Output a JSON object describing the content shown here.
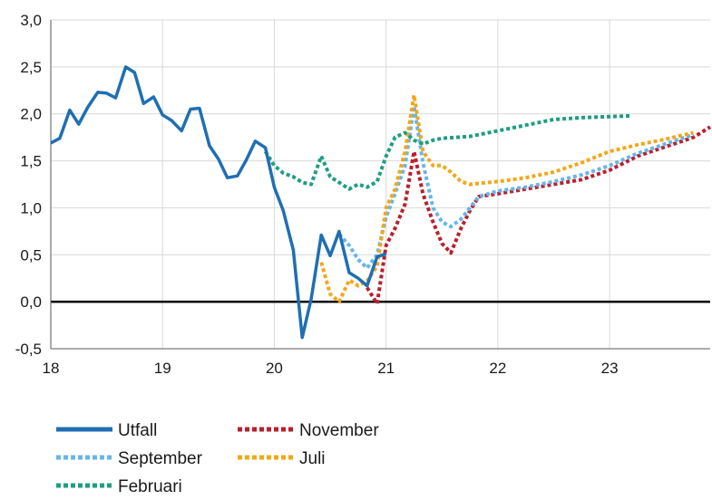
{
  "chart_data": {
    "type": "line",
    "xlim": [
      18,
      23.9
    ],
    "ylim": [
      -0.5,
      3.0
    ],
    "x_ticks": [
      "18",
      "19",
      "20",
      "21",
      "22",
      "23"
    ],
    "y_ticks": [
      "3,0",
      "2,5",
      "2,0",
      "1,5",
      "1,0",
      "0,5",
      "0,0",
      "-0,5"
    ],
    "grid": true,
    "legend": "bottom",
    "series": [
      {
        "name": "Utfall",
        "color": "#1f6fb2",
        "style": "solid",
        "x": [
          18.0,
          18.08,
          18.17,
          18.25,
          18.33,
          18.42,
          18.5,
          18.58,
          18.67,
          18.75,
          18.83,
          18.92,
          19.0,
          19.08,
          19.17,
          19.25,
          19.33,
          19.42,
          19.5,
          19.58,
          19.67,
          19.75,
          19.83,
          19.92,
          20.0,
          20.08,
          20.17,
          20.25,
          20.33,
          20.42,
          20.5,
          20.58,
          20.67,
          20.75,
          20.83,
          20.92,
          21.0
        ],
        "y": [
          1.69,
          1.74,
          2.04,
          1.89,
          2.07,
          2.23,
          2.22,
          2.17,
          2.5,
          2.44,
          2.11,
          2.18,
          1.99,
          1.93,
          1.82,
          2.05,
          2.06,
          1.66,
          1.52,
          1.32,
          1.34,
          1.51,
          1.71,
          1.64,
          1.22,
          0.97,
          0.55,
          -0.38,
          0.03,
          0.71,
          0.49,
          0.75,
          0.31,
          0.25,
          0.17,
          0.48,
          0.51
        ]
      },
      {
        "name": "November",
        "color": "#b8202e",
        "style": "dotted",
        "x": [
          20.83,
          20.92,
          21.0,
          21.08,
          21.17,
          21.25,
          21.33,
          21.42,
          21.5,
          21.58,
          21.67,
          21.75,
          21.83,
          22.0,
          22.25,
          22.5,
          22.75,
          23.0,
          23.25,
          23.5,
          23.75,
          23.9
        ],
        "y": [
          0.15,
          -0.02,
          0.6,
          0.78,
          1.04,
          1.6,
          1.15,
          0.85,
          0.62,
          0.52,
          0.78,
          0.97,
          1.12,
          1.15,
          1.2,
          1.25,
          1.3,
          1.4,
          1.55,
          1.65,
          1.75,
          1.86
        ]
      },
      {
        "name": "September",
        "color": "#66b6e9",
        "style": "dotted",
        "x": [
          20.58,
          20.67,
          20.75,
          20.83,
          20.92,
          21.0,
          21.08,
          21.17,
          21.25,
          21.33,
          21.42,
          21.5,
          21.58,
          21.67,
          21.75,
          21.83,
          22.0,
          22.25,
          22.5,
          22.75,
          23.0,
          23.25,
          23.5,
          23.75
        ],
        "y": [
          0.72,
          0.6,
          0.45,
          0.36,
          0.5,
          0.9,
          1.15,
          1.45,
          2.08,
          1.48,
          1.0,
          0.85,
          0.8,
          0.88,
          1.0,
          1.12,
          1.18,
          1.22,
          1.28,
          1.35,
          1.45,
          1.58,
          1.68,
          1.78
        ]
      },
      {
        "name": "Juli",
        "color": "#f2a71b",
        "style": "dotted",
        "x": [
          20.42,
          20.5,
          20.58,
          20.67,
          20.75,
          20.83,
          20.92,
          21.0,
          21.08,
          21.17,
          21.25,
          21.33,
          21.42,
          21.5,
          21.58,
          21.67,
          21.75,
          21.83,
          22.0,
          22.25,
          22.5,
          22.75,
          23.0,
          23.25,
          23.5,
          23.75
        ],
        "y": [
          0.42,
          0.08,
          0.0,
          0.23,
          0.17,
          0.22,
          0.38,
          1.0,
          1.2,
          1.6,
          2.2,
          1.6,
          1.45,
          1.45,
          1.38,
          1.28,
          1.25,
          1.26,
          1.28,
          1.32,
          1.38,
          1.48,
          1.6,
          1.67,
          1.73,
          1.8
        ]
      },
      {
        "name": "Februari",
        "color": "#1e9e82",
        "style": "dotted",
        "x": [
          19.92,
          20.0,
          20.08,
          20.17,
          20.25,
          20.33,
          20.42,
          20.5,
          20.58,
          20.67,
          20.75,
          20.83,
          20.92,
          21.0,
          21.08,
          21.17,
          21.25,
          21.33,
          21.42,
          21.5,
          21.75,
          22.0,
          22.25,
          22.5,
          22.75,
          23.0,
          23.2
        ],
        "y": [
          1.6,
          1.45,
          1.37,
          1.33,
          1.27,
          1.25,
          1.55,
          1.33,
          1.27,
          1.2,
          1.25,
          1.22,
          1.28,
          1.55,
          1.75,
          1.8,
          1.72,
          1.68,
          1.72,
          1.74,
          1.76,
          1.82,
          1.88,
          1.94,
          1.96,
          1.97,
          1.98
        ]
      }
    ]
  },
  "legend_items": [
    {
      "label": "Utfall",
      "color": "#1f6fb2",
      "style": "solid"
    },
    {
      "label": "November",
      "color": "#b8202e",
      "style": "dotted"
    },
    {
      "label": "September",
      "color": "#66b6e9",
      "style": "dotted"
    },
    {
      "label": "Juli",
      "color": "#f2a71b",
      "style": "dotted"
    },
    {
      "label": "Februari",
      "color": "#1e9e82",
      "style": "dotted"
    }
  ]
}
